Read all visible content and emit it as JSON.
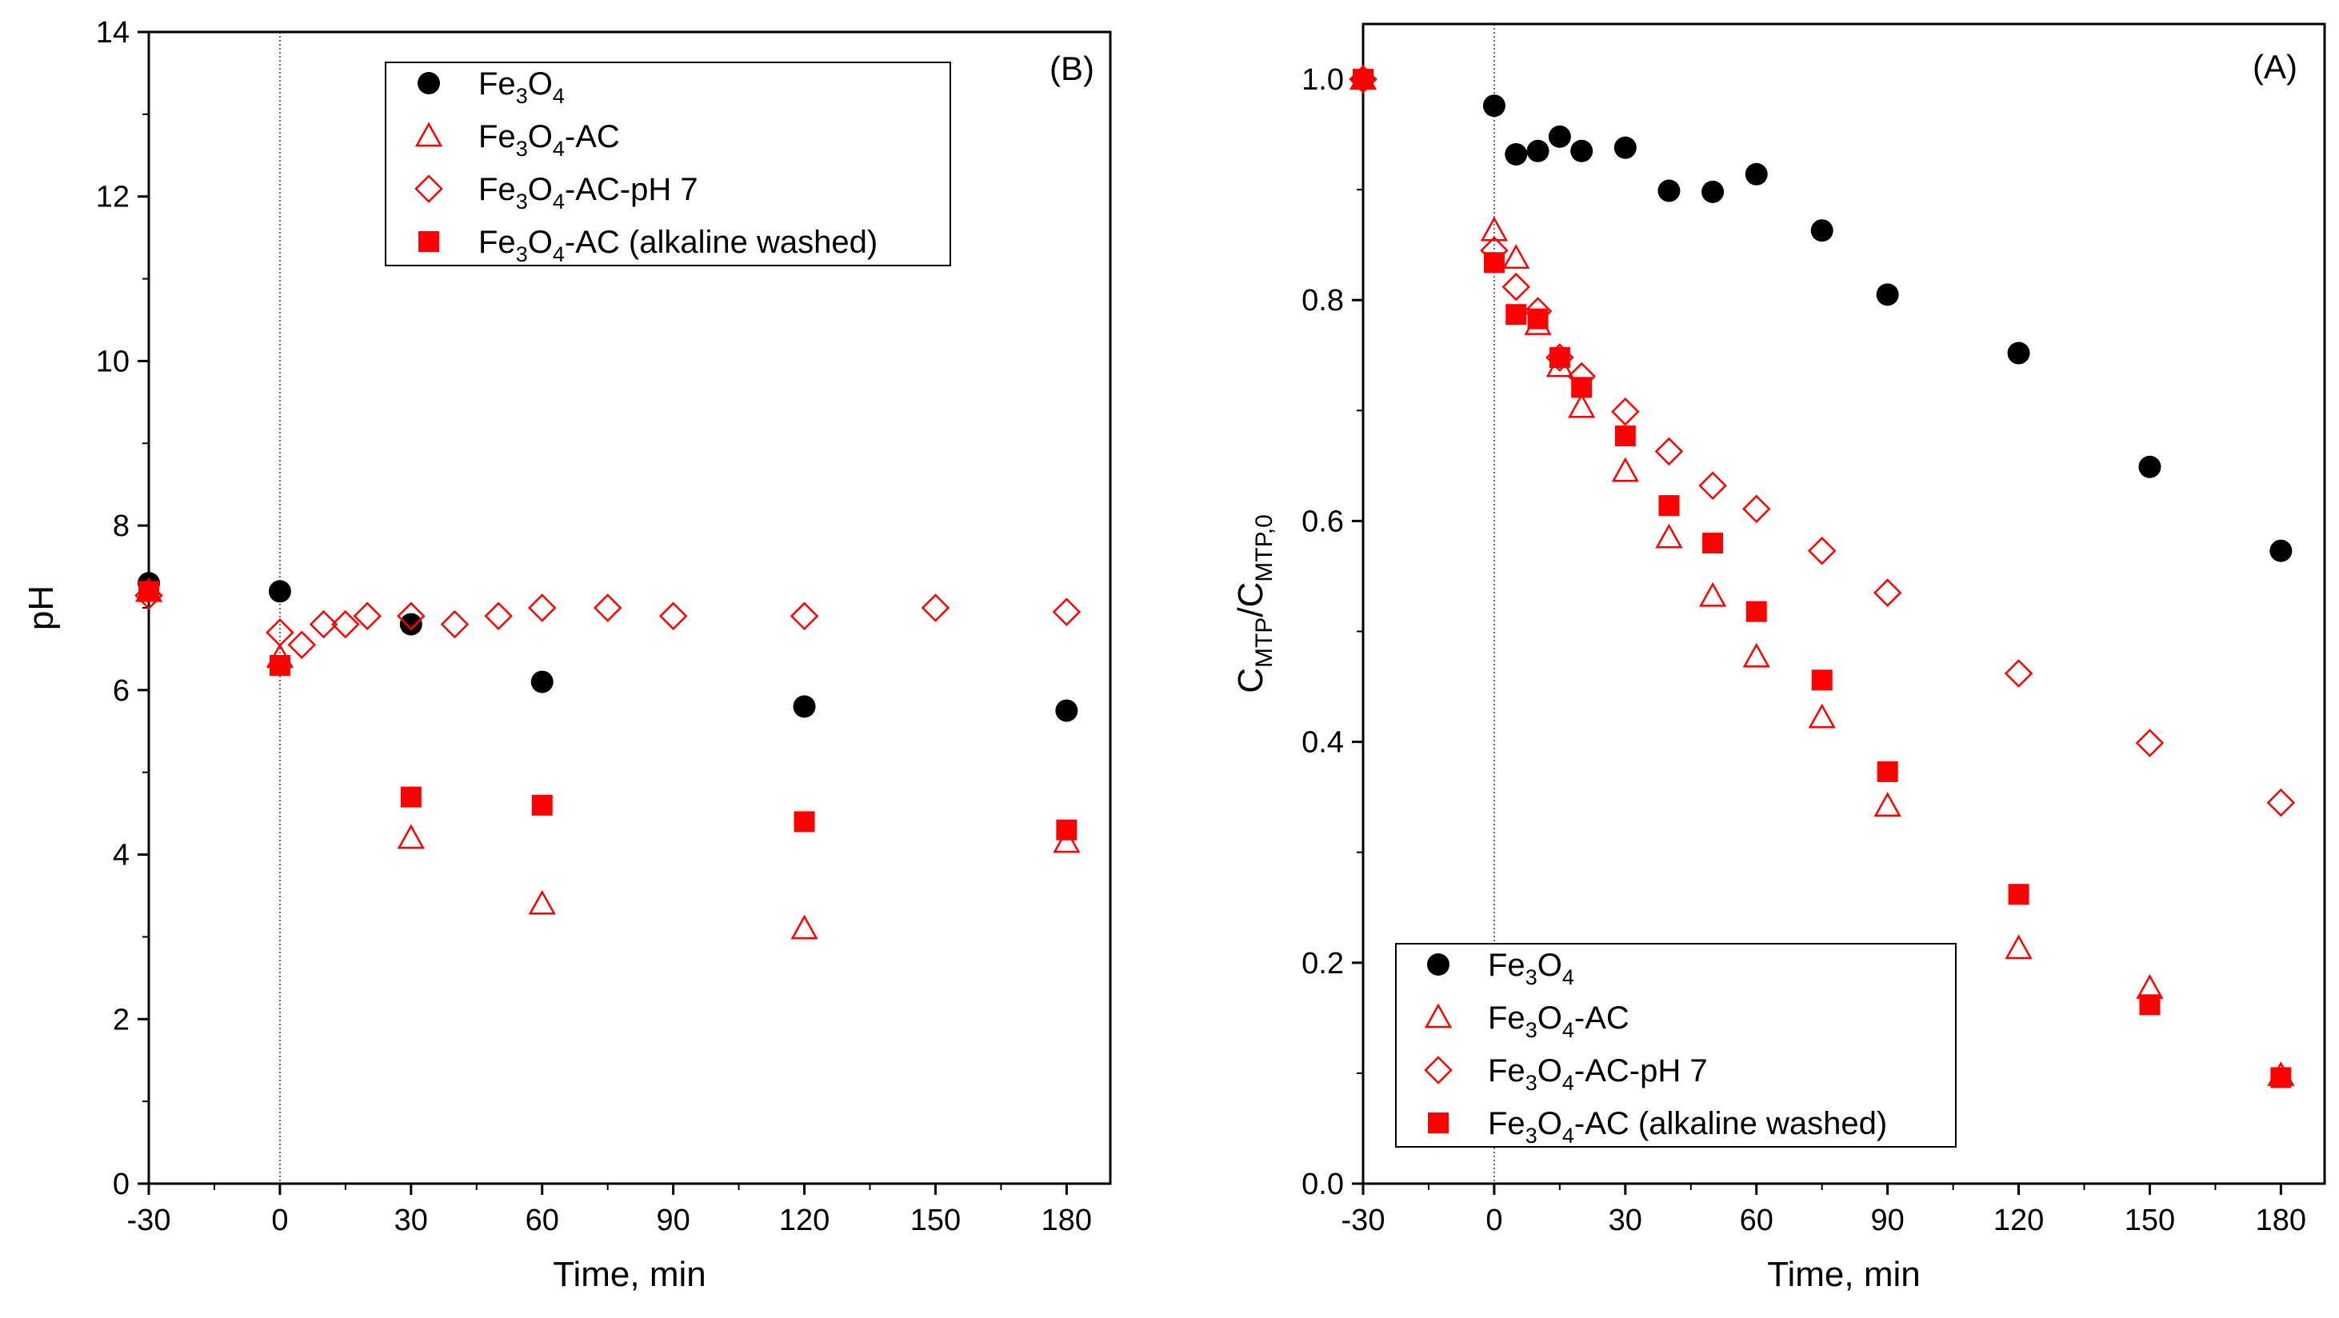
{
  "colors": {
    "black_series": "#000000",
    "red_series": "#ff0000"
  },
  "chart_data": [
    {
      "type": "scatter",
      "panel_label": "(B)",
      "xlabel": "Time, min",
      "ylabel": "pH",
      "xlim": [
        -30,
        190
      ],
      "ylim": [
        0,
        14
      ],
      "xticks": [
        -30,
        0,
        30,
        60,
        90,
        120,
        150,
        180
      ],
      "yticks": [
        0,
        2,
        4,
        6,
        8,
        10,
        12,
        14
      ],
      "reference_line_x": 0,
      "legend_position": "top-center",
      "series": [
        {
          "name": "Fe3O4",
          "label_parts": [
            "Fe",
            "3",
            "O",
            "4",
            ""
          ],
          "marker": "filled-circle",
          "color": "#000000",
          "x": [
            -30,
            0,
            30,
            60,
            120,
            180
          ],
          "y": [
            7.3,
            7.2,
            6.8,
            6.1,
            5.8,
            5.75
          ]
        },
        {
          "name": "Fe3O4-AC",
          "label_parts": [
            "Fe",
            "3",
            "O",
            "4",
            "-AC"
          ],
          "marker": "open-triangle",
          "color": "#ff0000",
          "x": [
            -30,
            0,
            30,
            60,
            120,
            180
          ],
          "y": [
            7.2,
            6.4,
            4.2,
            3.4,
            3.1,
            4.15
          ]
        },
        {
          "name": "Fe3O4-AC-pH 7",
          "label_parts": [
            "Fe",
            "3",
            "O",
            "4",
            "-AC-pH 7"
          ],
          "marker": "open-diamond",
          "color": "#ff0000",
          "x": [
            -30,
            0,
            5,
            10,
            15,
            20,
            30,
            40,
            50,
            60,
            75,
            90,
            120,
            150,
            180
          ],
          "y": [
            7.15,
            6.7,
            6.55,
            6.8,
            6.8,
            6.9,
            6.9,
            6.8,
            6.9,
            7.0,
            7.0,
            6.9,
            6.9,
            7.0,
            6.95
          ]
        },
        {
          "name": "Fe3O4-AC (alkaline washed)",
          "label_parts": [
            "Fe",
            "3",
            "O",
            "4",
            "-AC (alkaline washed)"
          ],
          "marker": "filled-square",
          "color": "#ff0000",
          "x": [
            -30,
            0,
            30,
            60,
            120,
            180
          ],
          "y": [
            7.2,
            6.3,
            4.7,
            4.6,
            4.4,
            4.3
          ]
        }
      ]
    },
    {
      "type": "scatter",
      "panel_label": "(A)",
      "xlabel": "Time, min",
      "ylabel": "C_MTP/C_MTP,0",
      "ylabel_parts": [
        "C",
        "MTP",
        "/C",
        "MTP,0"
      ],
      "xlim": [
        -30,
        190
      ],
      "ylim": [
        0,
        1.05
      ],
      "xticks": [
        -30,
        0,
        30,
        60,
        90,
        120,
        150,
        180
      ],
      "yticks": [
        0.0,
        0.2,
        0.4,
        0.6,
        0.8,
        1.0
      ],
      "ytick_labels": [
        "0.0",
        "0.2",
        "0.4",
        "0.6",
        "0.8",
        "1.0"
      ],
      "reference_line_x": 0,
      "legend_position": "bottom-left",
      "series": [
        {
          "name": "Fe3O4",
          "label_parts": [
            "Fe",
            "3",
            "O",
            "4",
            ""
          ],
          "marker": "filled-circle",
          "color": "#000000",
          "x": [
            -30,
            0,
            5,
            10,
            15,
            20,
            30,
            40,
            50,
            60,
            75,
            90,
            120,
            150,
            180
          ],
          "y": [
            1.0,
            0.976,
            0.932,
            0.935,
            0.948,
            0.935,
            0.938,
            0.899,
            0.898,
            0.914,
            0.863,
            0.805,
            0.752,
            0.649,
            0.573
          ]
        },
        {
          "name": "Fe3O4-AC",
          "label_parts": [
            "Fe",
            "3",
            "O",
            "4",
            "-AC"
          ],
          "marker": "open-triangle",
          "color": "#ff0000",
          "x": [
            -30,
            0,
            5,
            10,
            15,
            20,
            30,
            40,
            50,
            60,
            75,
            90,
            120,
            150,
            180
          ],
          "y": [
            1.0,
            0.863,
            0.838,
            0.778,
            0.74,
            0.703,
            0.645,
            0.585,
            0.532,
            0.477,
            0.422,
            0.342,
            0.213,
            0.177,
            0.098
          ]
        },
        {
          "name": "Fe3O4-AC-pH 7",
          "label_parts": [
            "Fe",
            "3",
            "O",
            "4",
            "-AC-pH 7"
          ],
          "marker": "open-diamond",
          "color": "#ff0000",
          "x": [
            -30,
            0,
            5,
            10,
            15,
            20,
            30,
            40,
            50,
            60,
            75,
            90,
            120,
            150,
            180
          ],
          "y": [
            1.0,
            0.845,
            0.812,
            0.79,
            0.748,
            0.731,
            0.699,
            0.663,
            0.632,
            0.611,
            0.573,
            0.535,
            0.462,
            0.399,
            0.345
          ]
        },
        {
          "name": "Fe3O4-AC (alkaline washed)",
          "label_parts": [
            "Fe",
            "3",
            "O",
            "4",
            "-AC (alkaline washed)"
          ],
          "marker": "filled-square",
          "color": "#ff0000",
          "x": [
            -30,
            0,
            5,
            10,
            15,
            20,
            30,
            40,
            50,
            60,
            75,
            90,
            120,
            150,
            180
          ],
          "y": [
            1.0,
            0.834,
            0.787,
            0.783,
            0.748,
            0.721,
            0.677,
            0.614,
            0.58,
            0.518,
            0.456,
            0.373,
            0.262,
            0.162,
            0.096
          ]
        }
      ]
    }
  ]
}
